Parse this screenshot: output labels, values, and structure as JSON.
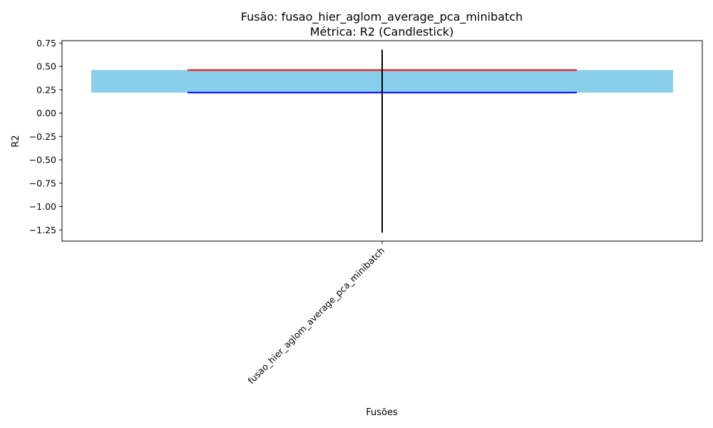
{
  "chart_data": {
    "type": "candlestick",
    "title": "Fusão: fusao_hier_aglom_average_pca_minibatch",
    "subtitle": "Métrica: R2 (Candlestick)",
    "xlabel": "Fusões",
    "ylabel": "R2",
    "ylim": [
      -1.37,
      0.775
    ],
    "yticks": [
      0.75,
      0.5,
      0.25,
      0.0,
      -0.25,
      -0.5,
      -0.75,
      -1.0,
      -1.25
    ],
    "ytick_labels": [
      "0.75",
      "0.50",
      "0.25",
      "0.00",
      "−0.25",
      "−0.50",
      "−0.75",
      "−1.00",
      "−1.25"
    ],
    "categories": [
      "fusao_hier_aglom_average_pca_minibatch"
    ],
    "candles": [
      {
        "category": "fusao_hier_aglom_average_pca_minibatch",
        "open": 0.46,
        "close": 0.22,
        "high": 0.68,
        "low": -1.28
      }
    ],
    "grid": false,
    "colors": {
      "body": "#87ceeb",
      "open_line": "#ff0000",
      "close_line": "#0000ff",
      "wick": "#000000",
      "axes": "#000000"
    }
  }
}
